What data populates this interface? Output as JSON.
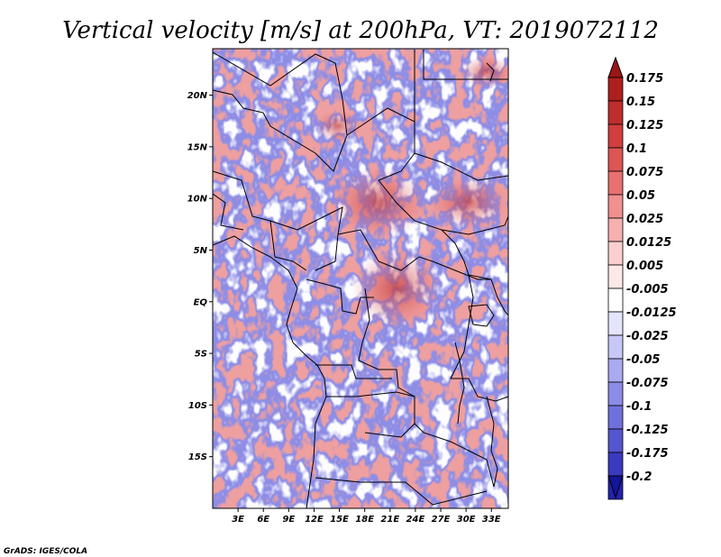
{
  "title": "Vertical velocity [m/s] at 200hPa, VT: 2019072112",
  "credit": "GrADS: IGES/COLA",
  "chart_data": {
    "type": "heatmap",
    "title": "Vertical velocity [m/s] at 200hPa, VT: 2019072112",
    "variable": "Vertical velocity",
    "units": "m/s",
    "level": "200hPa",
    "valid_time": "2019072112",
    "lon_range": [
      0,
      35
    ],
    "lat_range": [
      -20,
      24.5
    ],
    "x_ticks": [
      {
        "value": 3,
        "label": "3E"
      },
      {
        "value": 6,
        "label": "6E"
      },
      {
        "value": 9,
        "label": "9E"
      },
      {
        "value": 12,
        "label": "12E"
      },
      {
        "value": 15,
        "label": "15E"
      },
      {
        "value": 18,
        "label": "18E"
      },
      {
        "value": 21,
        "label": "21E"
      },
      {
        "value": 24,
        "label": "24E"
      },
      {
        "value": 27,
        "label": "27E"
      },
      {
        "value": 30,
        "label": "30E"
      },
      {
        "value": 33,
        "label": "33E"
      }
    ],
    "y_ticks": [
      {
        "value": 20,
        "label": "20N"
      },
      {
        "value": 15,
        "label": "15N"
      },
      {
        "value": 10,
        "label": "10N"
      },
      {
        "value": 5,
        "label": "5N"
      },
      {
        "value": 0,
        "label": "EQ"
      },
      {
        "value": -5,
        "label": "5S"
      },
      {
        "value": -10,
        "label": "10S"
      },
      {
        "value": -15,
        "label": "15S"
      }
    ],
    "colorbar": {
      "levels": [
        {
          "label": "0.175",
          "color": "#ad1f1f"
        },
        {
          "label": "0.15",
          "color": "#bf2d2d"
        },
        {
          "label": "0.125",
          "color": "#d03e3e"
        },
        {
          "label": "0.1",
          "color": "#dd5555"
        },
        {
          "label": "0.075",
          "color": "#e87070"
        },
        {
          "label": "0.05",
          "color": "#f09090"
        },
        {
          "label": "0.025",
          "color": "#f6b0b0"
        },
        {
          "label": "0.0125",
          "color": "#fbcfcf"
        },
        {
          "label": "0.005",
          "color": "#fde8e8"
        },
        {
          "label": "-0.005",
          "color": "#ffffff"
        },
        {
          "label": "-0.0125",
          "color": "#e4e4fb"
        },
        {
          "label": "-0.025",
          "color": "#c8c8f6"
        },
        {
          "label": "-0.05",
          "color": "#aaaaf0"
        },
        {
          "label": "-0.075",
          "color": "#8c8ce8"
        },
        {
          "label": "-0.1",
          "color": "#7070dd"
        },
        {
          "label": "-0.125",
          "color": "#5555cf"
        },
        {
          "label": "-0.175",
          "color": "#3a3abf"
        },
        {
          "label": "-0.2",
          "color": "#2222ad"
        }
      ],
      "top_extend_color": "#9a1515",
      "bottom_extend_color": "#15159a",
      "bottom_fill_color": "#1c1ca3"
    }
  }
}
